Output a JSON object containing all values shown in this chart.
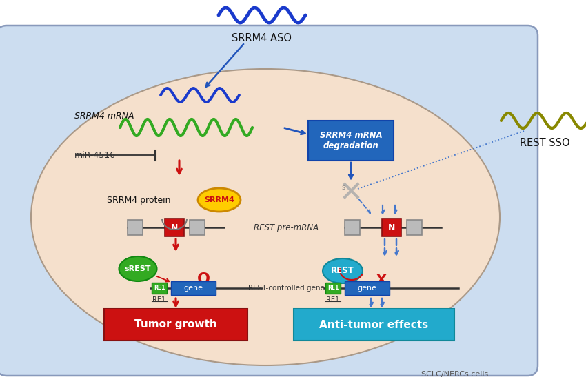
{
  "bg_outer": "#ffffff",
  "bg_cell_rect": "#ccddf0",
  "bg_cell_inner": "#f5e0cc",
  "title_text": "SCLC/NERCs cells",
  "srrm4_aso_label": "SRRM4 ASO",
  "rest_sso_label": "REST SSO",
  "srrm4_mrna_label": "SRRM4 mRNA",
  "mir_label": "miR-4516",
  "srrm4_protein_label": "SRRM4 protein",
  "rest_premrna_label": "REST pre-mRNA",
  "rest_controlled_label": "REST-controlled genes",
  "degradation_box_label": "SRRM4 mRNA\ndegradation",
  "tumor_growth_label": "Tumor growth",
  "antitumor_label": "Anti-tumor effects",
  "srest_label": "sREST",
  "rest_label": "REST",
  "re1_label": "RE1",
  "gene_label": "gene",
  "blue_wave": "#1a3acc",
  "green_wave": "#33aa22",
  "olive_wave": "#888800",
  "red_arrow": "#cc1111",
  "blue_arrow": "#2255bb",
  "blue_dashed": "#4477cc",
  "blue_box": "#2266bb",
  "red_box": "#cc1111",
  "cyan_box": "#22aacc",
  "yellow_oval": "#ffcc00",
  "yellow_oval_edge": "#cc8800",
  "green_oval": "#33aa22",
  "cyan_oval": "#22aacc",
  "gray_box": "#bbbbbb",
  "gray_box_edge": "#888888",
  "red_n_box": "#cc1111",
  "green_re1": "#33aa22",
  "dark_text": "#111111",
  "mid_text": "#333333"
}
